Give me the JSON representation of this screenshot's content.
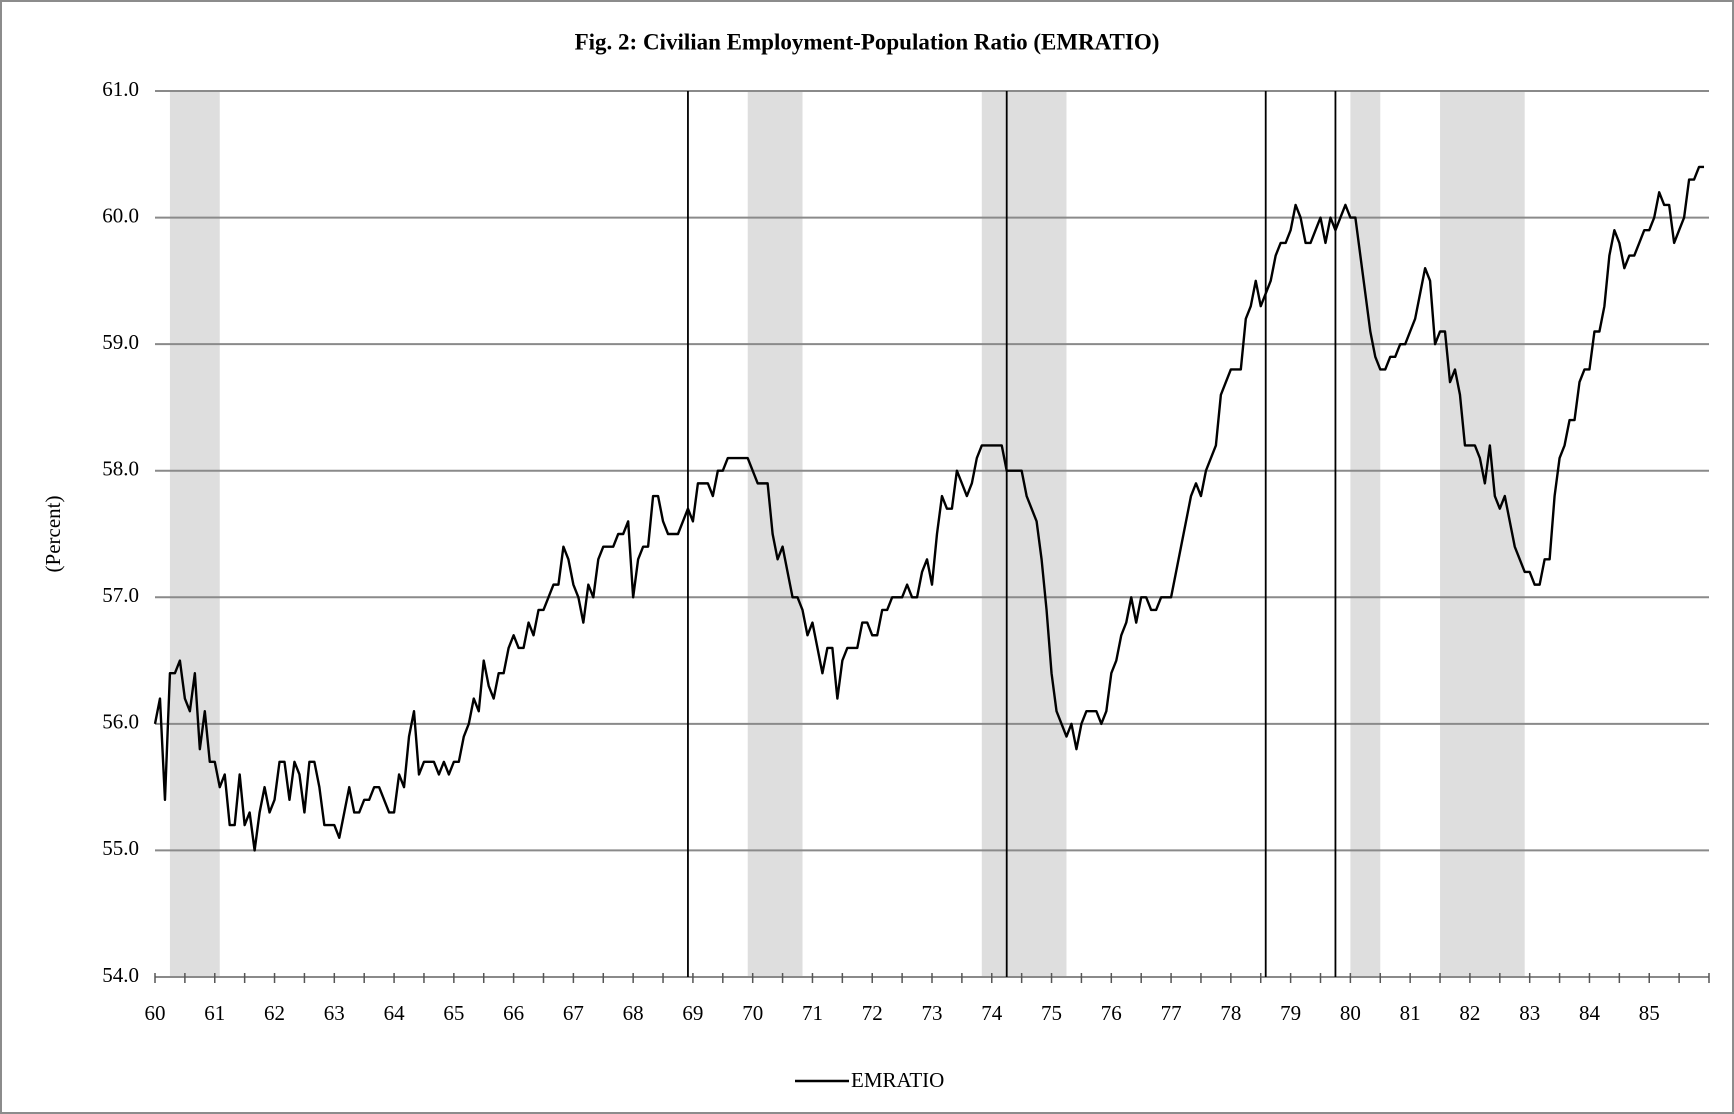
{
  "chart_data": {
    "type": "line",
    "title": "Fig. 2: Civilian Employment-Population Ratio (EMRATIO)",
    "y_label": "(Percent)",
    "ylim": [
      54,
      61
    ],
    "yticks": [
      {
        "value": 54,
        "label": "54.0"
      },
      {
        "value": 55,
        "label": "55.0"
      },
      {
        "value": 56,
        "label": "56.0"
      },
      {
        "value": 57,
        "label": "57.0"
      },
      {
        "value": 58,
        "label": "58.0"
      },
      {
        "value": 59,
        "label": "59.0"
      },
      {
        "value": 60,
        "label": "60.0"
      },
      {
        "value": 61,
        "label": "61.0"
      }
    ],
    "grid": true,
    "shaded_periods": [
      [
        3,
        13
      ],
      [
        119,
        130
      ],
      [
        166,
        183
      ],
      [
        240,
        246
      ],
      [
        258,
        275
      ]
    ],
    "vertical_lines": [
      107,
      171,
      223,
      237
    ],
    "categories": [
      "60",
      null,
      null,
      null,
      null,
      null,
      null,
      null,
      null,
      null,
      null,
      null,
      "61",
      null,
      null,
      null,
      null,
      null,
      null,
      null,
      null,
      null,
      null,
      null,
      "62",
      null,
      null,
      null,
      null,
      null,
      null,
      null,
      null,
      null,
      null,
      null,
      "63",
      null,
      null,
      null,
      null,
      null,
      null,
      null,
      null,
      null,
      null,
      null,
      "64",
      null,
      null,
      null,
      null,
      null,
      null,
      null,
      null,
      null,
      null,
      null,
      "65",
      null,
      null,
      null,
      null,
      null,
      null,
      null,
      null,
      null,
      null,
      null,
      "66",
      null,
      null,
      null,
      null,
      null,
      null,
      null,
      null,
      null,
      null,
      null,
      "67",
      null,
      null,
      null,
      null,
      null,
      null,
      null,
      null,
      null,
      null,
      null,
      "68",
      null,
      null,
      null,
      null,
      null,
      null,
      null,
      null,
      null,
      null,
      null,
      "69",
      null,
      null,
      null,
      null,
      null,
      null,
      null,
      null,
      null,
      null,
      null,
      "70",
      null,
      null,
      null,
      null,
      null,
      null,
      null,
      null,
      null,
      null,
      null,
      "71",
      null,
      null,
      null,
      null,
      null,
      null,
      null,
      null,
      null,
      null,
      null,
      "72",
      null,
      null,
      null,
      null,
      null,
      null,
      null,
      null,
      null,
      null,
      null,
      "73",
      null,
      null,
      null,
      null,
      null,
      null,
      null,
      null,
      null,
      null,
      null,
      "74",
      null,
      null,
      null,
      null,
      null,
      null,
      null,
      null,
      null,
      null,
      null,
      "75",
      null,
      null,
      null,
      null,
      null,
      null,
      null,
      null,
      null,
      null,
      null,
      "76",
      null,
      null,
      null,
      null,
      null,
      null,
      null,
      null,
      null,
      null,
      null,
      "77",
      null,
      null,
      null,
      null,
      null,
      null,
      null,
      null,
      null,
      null,
      null,
      "78",
      null,
      null,
      null,
      null,
      null,
      null,
      null,
      null,
      null,
      null,
      null,
      "79",
      null,
      null,
      null,
      null,
      null,
      null,
      null,
      null,
      null,
      null,
      null,
      "80",
      null,
      null,
      null,
      null,
      null,
      null,
      null,
      null,
      null,
      null,
      null,
      "81",
      null,
      null,
      null,
      null,
      null,
      null,
      null,
      null,
      null,
      null,
      null,
      "82",
      null,
      null,
      null,
      null,
      null,
      null,
      null,
      null,
      null,
      null,
      null,
      "83",
      null,
      null,
      null,
      null,
      null,
      null,
      null,
      null,
      null,
      null,
      null,
      "84",
      null,
      null,
      null,
      null,
      null,
      null,
      null,
      null,
      null,
      null,
      null,
      "85",
      null,
      null,
      null,
      null,
      null,
      null,
      null,
      null,
      null,
      null,
      null
    ],
    "series": [
      {
        "name": "EMRATIO",
        "color": "#000000",
        "values": [
          56.0,
          56.2,
          55.4,
          56.4,
          56.4,
          56.5,
          56.2,
          56.1,
          56.4,
          55.8,
          56.1,
          55.7,
          55.7,
          55.5,
          55.6,
          55.2,
          55.2,
          55.6,
          55.2,
          55.3,
          55.0,
          55.3,
          55.5,
          55.3,
          55.4,
          55.7,
          55.7,
          55.4,
          55.7,
          55.6,
          55.3,
          55.7,
          55.7,
          55.5,
          55.2,
          55.2,
          55.2,
          55.1,
          55.3,
          55.5,
          55.3,
          55.3,
          55.4,
          55.4,
          55.5,
          55.5,
          55.4,
          55.3,
          55.3,
          55.6,
          55.5,
          55.9,
          56.1,
          55.6,
          55.7,
          55.7,
          55.7,
          55.6,
          55.7,
          55.6,
          55.7,
          55.7,
          55.9,
          56.0,
          56.2,
          56.1,
          56.5,
          56.3,
          56.2,
          56.4,
          56.4,
          56.6,
          56.7,
          56.6,
          56.6,
          56.8,
          56.7,
          56.9,
          56.9,
          57.0,
          57.1,
          57.1,
          57.4,
          57.3,
          57.1,
          57.0,
          56.8,
          57.1,
          57.0,
          57.3,
          57.4,
          57.4,
          57.4,
          57.5,
          57.5,
          57.6,
          57.0,
          57.3,
          57.4,
          57.4,
          57.8,
          57.8,
          57.6,
          57.5,
          57.5,
          57.5,
          57.6,
          57.7,
          57.6,
          57.9,
          57.9,
          57.9,
          57.8,
          58.0,
          58.0,
          58.1,
          58.1,
          58.1,
          58.1,
          58.1,
          58.0,
          57.9,
          57.9,
          57.9,
          57.5,
          57.3,
          57.4,
          57.2,
          57.0,
          57.0,
          56.9,
          56.7,
          56.8,
          56.6,
          56.4,
          56.6,
          56.6,
          56.2,
          56.5,
          56.6,
          56.6,
          56.6,
          56.8,
          56.8,
          56.7,
          56.7,
          56.9,
          56.9,
          57.0,
          57.0,
          57.0,
          57.1,
          57.0,
          57.0,
          57.2,
          57.3,
          57.1,
          57.5,
          57.8,
          57.7,
          57.7,
          58.0,
          57.9,
          57.8,
          57.9,
          58.1,
          58.2,
          58.2,
          58.2,
          58.2,
          58.2,
          58.0,
          58.0,
          58.0,
          58.0,
          57.8,
          57.7,
          57.6,
          57.3,
          56.9,
          56.4,
          56.1,
          56.0,
          55.9,
          56.0,
          55.8,
          56.0,
          56.1,
          56.1,
          56.1,
          56.0,
          56.1,
          56.4,
          56.5,
          56.7,
          56.8,
          57.0,
          56.8,
          57.0,
          57.0,
          56.9,
          56.9,
          57.0,
          57.0,
          57.0,
          57.2,
          57.4,
          57.6,
          57.8,
          57.9,
          57.8,
          58.0,
          58.1,
          58.2,
          58.6,
          58.7,
          58.8,
          58.8,
          58.8,
          59.2,
          59.3,
          59.5,
          59.3,
          59.4,
          59.5,
          59.7,
          59.8,
          59.8,
          59.9,
          60.1,
          60.0,
          59.8,
          59.8,
          59.9,
          60.0,
          59.8,
          60.0,
          59.9,
          60.0,
          60.1,
          60.0,
          60.0,
          59.7,
          59.4,
          59.1,
          58.9,
          58.8,
          58.8,
          58.9,
          58.9,
          59.0,
          59.0,
          59.1,
          59.2,
          59.4,
          59.6,
          59.5,
          59.0,
          59.1,
          59.1,
          58.7,
          58.8,
          58.6,
          58.2,
          58.2,
          58.2,
          58.1,
          57.9,
          58.2,
          57.8,
          57.7,
          57.8,
          57.6,
          57.4,
          57.3,
          57.2,
          57.2,
          57.1,
          57.1,
          57.3,
          57.3,
          57.8,
          58.1,
          58.2,
          58.4,
          58.4,
          58.7,
          58.8,
          58.8,
          59.1,
          59.1,
          59.3,
          59.7,
          59.9,
          59.8,
          59.6,
          59.7,
          59.7,
          59.8,
          59.9,
          59.9,
          60.0,
          60.2,
          60.1,
          60.1,
          59.8,
          59.9,
          60.0,
          60.3,
          60.3,
          60.4,
          60.4
        ]
      }
    ]
  }
}
